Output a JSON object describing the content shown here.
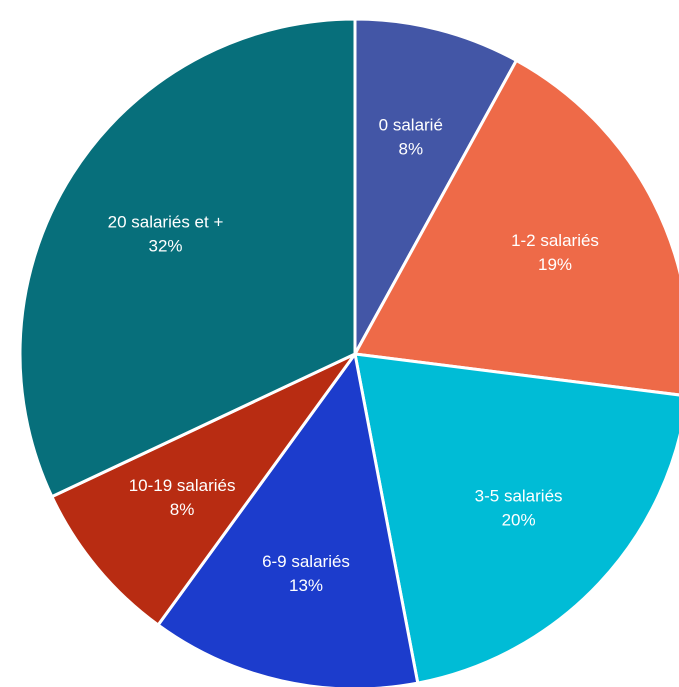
{
  "chart_data": {
    "type": "pie",
    "title": "",
    "slices": [
      {
        "label": "0 salarié",
        "value": 8,
        "display": "8%",
        "color": "#4356A6"
      },
      {
        "label": "1-2 salariés",
        "value": 19,
        "display": "19%",
        "color": "#EE6A48"
      },
      {
        "label": "3-5 salariés",
        "value": 20,
        "display": "20%",
        "color": "#00BCD6"
      },
      {
        "label": "6-9 salariés",
        "value": 13,
        "display": "13%",
        "color": "#1C3CCC"
      },
      {
        "label": "10-19 salariés",
        "value": 8,
        "display": "8%",
        "color": "#B82C12"
      },
      {
        "label": "20 salariés et +",
        "value": 32,
        "display": "32%",
        "color": "#076F7B"
      }
    ],
    "start_angle": "12 o'clock",
    "direction": "clockwise",
    "legend": "none",
    "data_labels": "inside"
  }
}
